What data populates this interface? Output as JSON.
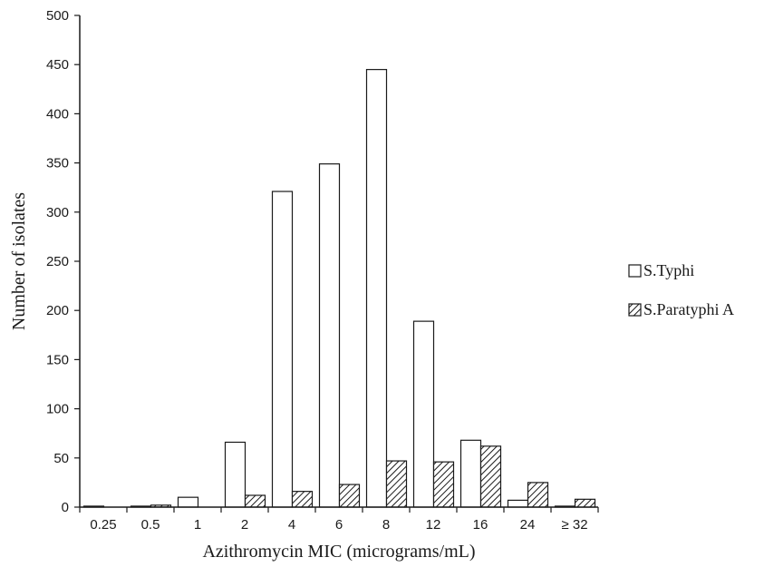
{
  "chart_data": {
    "type": "bar",
    "title": "",
    "xlabel": "Azithromycin MIC (micrograms/mL)",
    "ylabel": "Number of isolates",
    "ylim": [
      0,
      500
    ],
    "yticks": [
      0,
      50,
      100,
      150,
      200,
      250,
      300,
      350,
      400,
      450,
      500
    ],
    "categories": [
      "0.25",
      "0.5",
      "1",
      "2",
      "4",
      "6",
      "8",
      "12",
      "16",
      "24",
      "≥ 32"
    ],
    "series": [
      {
        "name": "S.Typhi",
        "fill": "white",
        "values": [
          1,
          1,
          10,
          66,
          321,
          349,
          445,
          189,
          68,
          7,
          1
        ]
      },
      {
        "name": "S.Paratyphi A",
        "fill": "hatched",
        "values": [
          0,
          2,
          0,
          12,
          16,
          23,
          47,
          46,
          62,
          25,
          8
        ]
      }
    ],
    "legend": "right",
    "grid": false,
    "colors": {
      "stroke": "#1a1a1a",
      "background": "#ffffff"
    }
  }
}
